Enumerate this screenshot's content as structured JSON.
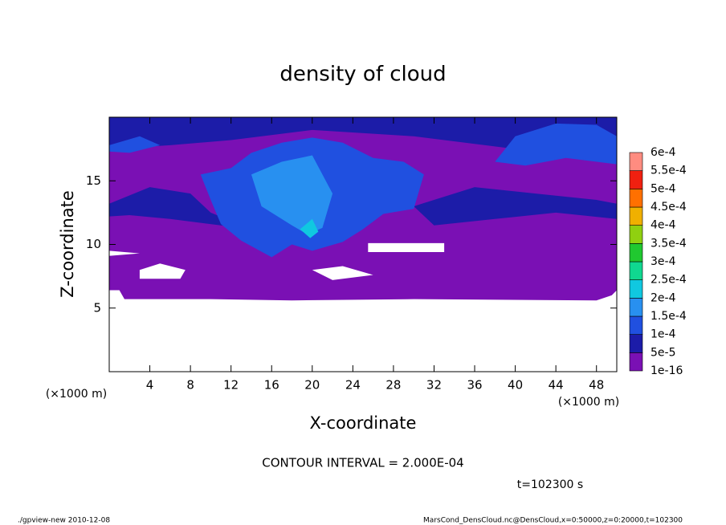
{
  "chart_data": {
    "type": "contour",
    "title": "density of cloud",
    "xlabel": "X-coordinate",
    "ylabel": "Z-coordinate",
    "x_unit": "(×1000 m)",
    "y_unit": "(×1000 m)",
    "annotation": "CONTOUR INTERVAL = 2.000E-04",
    "time": "t=102300 s",
    "footer_left": "./gpview-new   2010-12-08",
    "footer_right": "MarsCond_DensCloud.nc@DensCloud,x=0:50000,z=0:20000,t=102300",
    "xlim": [
      0,
      50
    ],
    "ylim": [
      0,
      20
    ],
    "xticks": [
      4,
      8,
      12,
      16,
      20,
      24,
      28,
      32,
      36,
      40,
      44,
      48
    ],
    "yticks": [
      5,
      10,
      15
    ],
    "levels": [
      {
        "value": 1e-16,
        "label": "1e-16"
      },
      {
        "value": 5e-05,
        "label": "5e-5"
      },
      {
        "value": 0.0001,
        "label": "1e-4"
      },
      {
        "value": 0.00015,
        "label": "1.5e-4"
      },
      {
        "value": 0.0002,
        "label": "2e-4"
      },
      {
        "value": 0.00025,
        "label": "2.5e-4"
      },
      {
        "value": 0.0003,
        "label": "3e-4"
      },
      {
        "value": 0.00035,
        "label": "3.5e-4"
      },
      {
        "value": 0.0004,
        "label": "4e-4"
      },
      {
        "value": 0.00045,
        "label": "4.5e-4"
      },
      {
        "value": 0.0005,
        "label": "5e-4"
      },
      {
        "value": 0.00055,
        "label": "5.5e-4"
      },
      {
        "value": 0.0006,
        "label": "6e-4"
      }
    ],
    "colors": [
      "#7a10b4",
      "#1c1ca8",
      "#2050e0",
      "#2890f0",
      "#10c8e0",
      "#10d890",
      "#20c830",
      "#90d010",
      "#f0b000",
      "#ff7000",
      "#f02010",
      "#ff8c80"
    ],
    "regions": [
      {
        "level": 1e-16,
        "points": [
          [
            0,
            6.4
          ],
          [
            1,
            6.4
          ],
          [
            1.5,
            5.7
          ],
          [
            10,
            5.7
          ],
          [
            18,
            5.6
          ],
          [
            30,
            5.7
          ],
          [
            48,
            5.6
          ],
          [
            49.5,
            6
          ],
          [
            50,
            6.4
          ],
          [
            50,
            20
          ],
          [
            0,
            20
          ]
        ]
      },
      {
        "level": 5e-05,
        "points": [
          [
            0,
            17.5
          ],
          [
            6,
            17.8
          ],
          [
            12,
            18.2
          ],
          [
            20,
            19
          ],
          [
            30,
            18.5
          ],
          [
            40,
            17.5
          ],
          [
            50,
            17.8
          ],
          [
            50,
            20
          ],
          [
            0,
            20
          ]
        ]
      },
      {
        "level": 5e-05,
        "points": [
          [
            0,
            13.2
          ],
          [
            4,
            14.5
          ],
          [
            8,
            14
          ],
          [
            10,
            12.5
          ],
          [
            14,
            11.2
          ],
          [
            6,
            12
          ],
          [
            2,
            12.3
          ],
          [
            0,
            12.2
          ]
        ]
      },
      {
        "level": 5e-05,
        "points": [
          [
            30,
            13
          ],
          [
            36,
            14.5
          ],
          [
            42,
            14
          ],
          [
            48,
            13.5
          ],
          [
            50,
            13.2
          ],
          [
            50,
            12
          ],
          [
            44,
            12.5
          ],
          [
            38,
            12
          ],
          [
            32,
            11.5
          ]
        ]
      },
      {
        "level": 0.0001,
        "points": [
          [
            9,
            15.5
          ],
          [
            12,
            16
          ],
          [
            14,
            17.2
          ],
          [
            17,
            18
          ],
          [
            20,
            18.4
          ],
          [
            23,
            18
          ],
          [
            26,
            16.8
          ],
          [
            29,
            16.5
          ],
          [
            31,
            15.5
          ],
          [
            30,
            12.8
          ],
          [
            27,
            12.4
          ],
          [
            25,
            11.2
          ],
          [
            23,
            10.2
          ],
          [
            20,
            9.5
          ],
          [
            18,
            10
          ],
          [
            16,
            9
          ],
          [
            13,
            10.3
          ],
          [
            11,
            11.6
          ],
          [
            10,
            13.5
          ]
        ]
      },
      {
        "level": 0.0001,
        "points": [
          [
            38,
            16.5
          ],
          [
            40,
            18.5
          ],
          [
            44,
            19.5
          ],
          [
            48,
            19.4
          ],
          [
            50,
            18.5
          ],
          [
            50,
            16.3
          ],
          [
            45,
            16.8
          ],
          [
            41,
            16.2
          ]
        ]
      },
      {
        "level": 0.0001,
        "points": [
          [
            0,
            17.8
          ],
          [
            3,
            18.5
          ],
          [
            5,
            17.8
          ],
          [
            2,
            17.2
          ],
          [
            0,
            17.3
          ]
        ]
      },
      {
        "level": 0.00015,
        "points": [
          [
            14,
            15.5
          ],
          [
            17,
            16.5
          ],
          [
            20,
            17
          ],
          [
            22,
            14
          ],
          [
            21,
            11.3
          ],
          [
            19.5,
            10.8
          ],
          [
            18,
            11.5
          ],
          [
            15,
            13
          ]
        ]
      },
      {
        "level": 0.0002,
        "points": [
          [
            18.8,
            11.2
          ],
          [
            20,
            12
          ],
          [
            20.6,
            11
          ],
          [
            19.8,
            10.5
          ]
        ]
      },
      {
        "level": null,
        "points": [
          [
            25.5,
            9.4
          ],
          [
            33,
            9.4
          ],
          [
            33,
            10.1
          ],
          [
            25.5,
            10.1
          ]
        ]
      },
      {
        "level": null,
        "points": [
          [
            3,
            7.3
          ],
          [
            7,
            7.3
          ],
          [
            7.5,
            8
          ],
          [
            5,
            8.5
          ],
          [
            3,
            8
          ]
        ]
      },
      {
        "level": null,
        "points": [
          [
            22,
            7.2
          ],
          [
            26,
            7.6
          ],
          [
            23,
            8.3
          ],
          [
            20,
            8
          ]
        ]
      },
      {
        "level": null,
        "points": [
          [
            0,
            9.1
          ],
          [
            3,
            9.3
          ],
          [
            0,
            9.5
          ]
        ]
      }
    ]
  }
}
